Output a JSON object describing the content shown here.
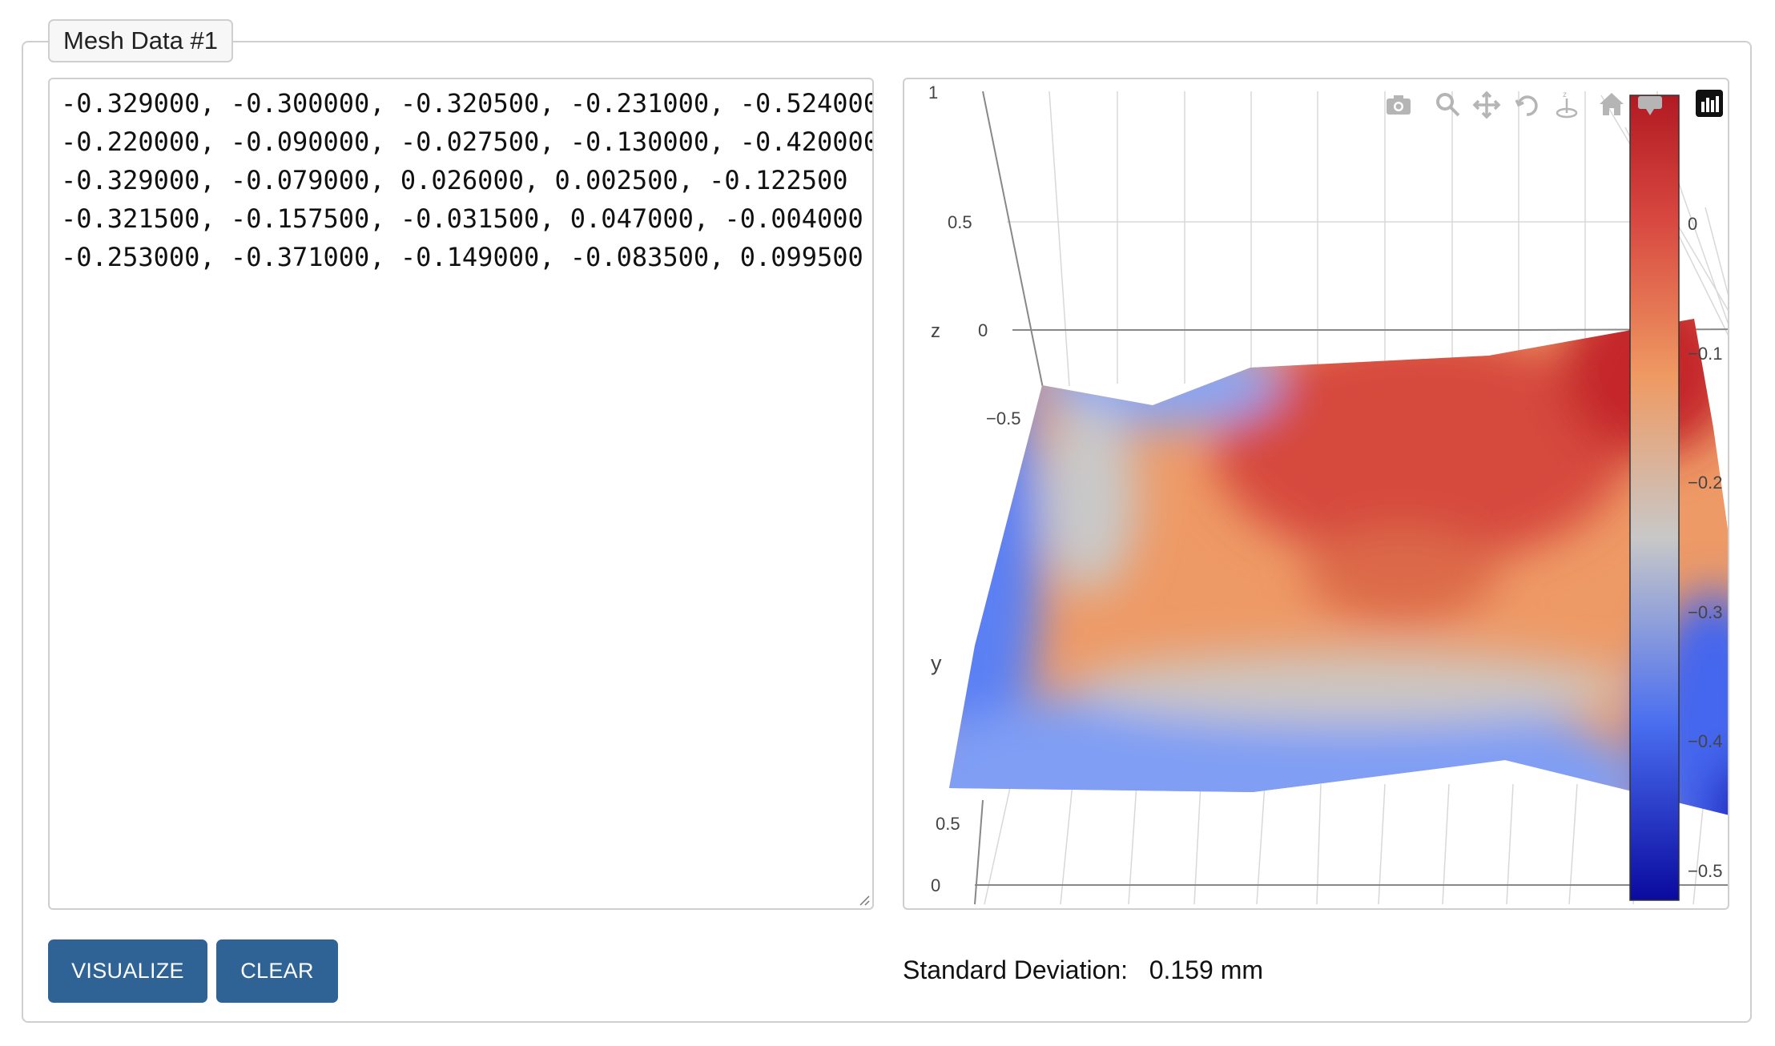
{
  "legend": "Mesh Data #1",
  "mesh_text": [
    "-0.329000, -0.300000, -0.320500, -0.231000, -0.524000",
    "-0.220000, -0.090000, -0.027500, -0.130000, -0.420000",
    "-0.329000, -0.079000, 0.026000, 0.002500, -0.122500",
    "-0.321500, -0.157500, -0.031500, 0.047000, -0.004000",
    "-0.253000, -0.371000, -0.149000, -0.083500, 0.099500"
  ],
  "buttons": {
    "visualize": "VISUALIZE",
    "clear": "CLEAR"
  },
  "stats": {
    "label": "Standard Deviation:",
    "value": "0.159 mm"
  },
  "plot": {
    "axis_labels": {
      "z": "z",
      "y": "y"
    },
    "z_ticks": [
      "1",
      "0.5",
      "0",
      "−0.5"
    ],
    "y_ticks": [
      "0.5",
      "0"
    ],
    "colorbar_ticks": [
      "0",
      "−0.1",
      "−0.2",
      "−0.3",
      "−0.4",
      "−0.5"
    ],
    "colorscale": [
      "#0a0a9e",
      "#5a7ef5",
      "#c8c8c8",
      "#ef9a63",
      "#d7463f",
      "#b11a22"
    ],
    "modebar_icons": [
      "camera-icon",
      "zoom-icon",
      "pan-icon",
      "orbit-icon",
      "turntable-icon",
      "home-icon",
      "hover-icon",
      "plotly-logo-icon"
    ]
  },
  "chart_data": {
    "type": "heatmap",
    "surface_z": [
      [
        -0.329,
        -0.3,
        -0.3205,
        -0.231,
        -0.524
      ],
      [
        -0.22,
        -0.09,
        -0.0275,
        -0.13,
        -0.42
      ],
      [
        -0.329,
        -0.079,
        0.026,
        0.0025,
        -0.1225
      ],
      [
        -0.3215,
        -0.1575,
        -0.0315,
        0.047,
        -0.004
      ],
      [
        -0.253,
        -0.371,
        -0.149,
        -0.0835,
        0.0995
      ]
    ],
    "zlabel": "z",
    "ylabel": "y",
    "colorbar_range": [
      -0.5,
      0.1
    ]
  }
}
